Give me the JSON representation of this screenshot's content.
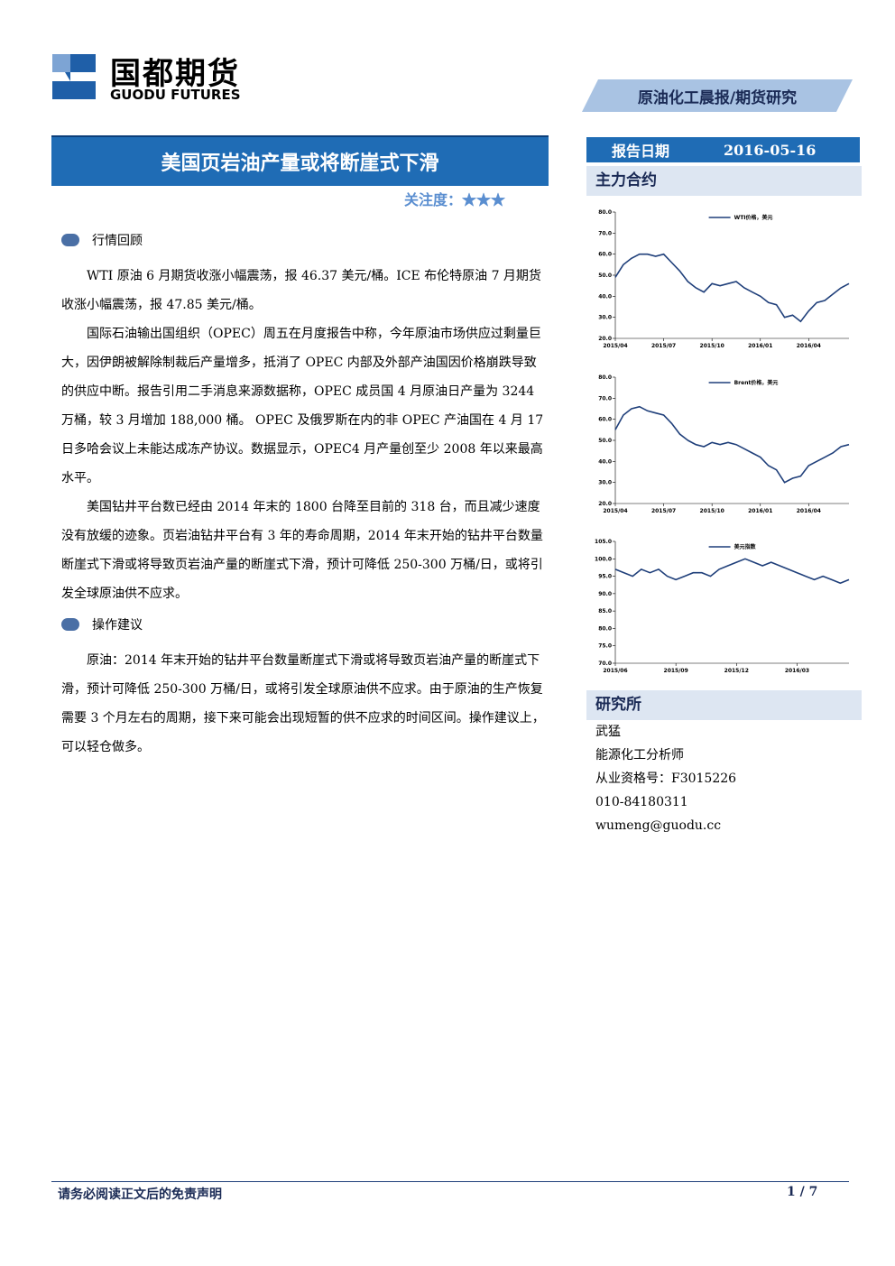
{
  "header": {
    "logo_cn": "国都期货",
    "logo_en": "GUODU FUTURES",
    "report_type": "原油化工晨报/期货研究",
    "title": "美国页岩油产量或将断崖式下滑",
    "attention_label": "关注度：",
    "stars": "★★★",
    "report_date_label": "报告日期",
    "report_date": "2016-05-16",
    "main_contract": "主力合约"
  },
  "sections": [
    {
      "heading": "行情回顾",
      "paragraphs": [
        "WTI 原油 6 月期货收涨小幅震荡，报 46.37 美元/桶。ICE 布伦特原油 7 月期货收涨小幅震荡，报 47.85 美元/桶。",
        "国际石油输出国组织（OPEC）周五在月度报告中称，今年原油市场供应过剩量巨大，因伊朗被解除制裁后产量增多，抵消了 OPEC 内部及外部产油国因价格崩跌导致的供应中断。报告引用二手消息来源数据称，OPEC 成员国 4 月原油日产量为 3244 万桶，较 3 月增加 188,000 桶。 OPEC 及俄罗斯在内的非 OPEC 产油国在 4 月 17 日多哈会议上未能达成冻产协议。数据显示，OPEC4 月产量创至少 2008 年以来最高水平。",
        "美国钻井平台数已经由 2014 年末的 1800 台降至目前的 318 台，而且减少速度没有放缓的迹象。页岩油钻井平台有 3 年的寿命周期，2014 年末开始的钻井平台数量断崖式下滑或将导致页岩油产量的断崖式下滑，预计可降低 250-300 万桶/日，或将引发全球原油供不应求。"
      ]
    },
    {
      "heading": "操作建议",
      "paragraphs": [
        "原油：2014 年末开始的钻井平台数量断崖式下滑或将导致页岩油产量的断崖式下滑，预计可降低 250-300 万桶/日，或将引发全球原油供不应求。由于原油的生产恢复需要 3 个月左右的周期，接下来可能会出现短暂的供不应求的时间区间。操作建议上，可以轻仓做多。"
      ]
    }
  ],
  "research": {
    "heading": "研究所",
    "lines": [
      "武猛",
      "能源化工分析师",
      "从业资格号：F3015226",
      "010-84180311",
      "wumeng@guodu.cc"
    ]
  },
  "footer": {
    "disclaimer": "请务必阅读正文后的免责声明",
    "page": "1 / 7"
  },
  "chart_data": [
    {
      "type": "line",
      "series": [
        {
          "name": "WTI价格，美元",
          "color": "#1f3f7a",
          "values": [
            49,
            55,
            58,
            60,
            60,
            59,
            60,
            56,
            52,
            47,
            44,
            42,
            46,
            45,
            46,
            47,
            44,
            42,
            40,
            37,
            36,
            30,
            31,
            28,
            33,
            37,
            38,
            41,
            44,
            46
          ]
        }
      ],
      "categories": [
        "2015/04",
        null,
        null,
        null,
        null,
        null,
        "2015/07",
        null,
        null,
        null,
        null,
        null,
        "2015/10",
        null,
        null,
        null,
        null,
        null,
        "2016/01",
        null,
        null,
        null,
        null,
        null,
        "2016/04",
        null,
        null,
        null,
        null,
        null
      ],
      "ylim": [
        20,
        80
      ],
      "yticks": [
        {
          "value": 20,
          "label": "20.0"
        },
        {
          "value": 30,
          "label": "30.0"
        },
        {
          "value": 40,
          "label": "40.0"
        },
        {
          "value": 50,
          "label": "50.0"
        },
        {
          "value": 60,
          "label": "60.0"
        },
        {
          "value": 70,
          "label": "70.0"
        },
        {
          "value": 80,
          "label": "80.0"
        }
      ]
    },
    {
      "type": "line",
      "series": [
        {
          "name": "Brent价格，美元",
          "color": "#1f3f7a",
          "values": [
            55,
            62,
            65,
            66,
            64,
            63,
            62,
            58,
            53,
            50,
            48,
            47,
            49,
            48,
            49,
            48,
            46,
            44,
            42,
            38,
            36,
            30,
            32,
            33,
            38,
            40,
            42,
            44,
            47,
            48
          ]
        }
      ],
      "categories": [
        "2015/04",
        null,
        null,
        null,
        null,
        null,
        "2015/07",
        null,
        null,
        null,
        null,
        null,
        "2015/10",
        null,
        null,
        null,
        null,
        null,
        "2016/01",
        null,
        null,
        null,
        null,
        null,
        "2016/04",
        null,
        null,
        null,
        null,
        null
      ],
      "ylim": [
        20,
        80
      ],
      "yticks": [
        {
          "value": 20,
          "label": "20.0"
        },
        {
          "value": 30,
          "label": "30.0"
        },
        {
          "value": 40,
          "label": "40.0"
        },
        {
          "value": 50,
          "label": "50.0"
        },
        {
          "value": 60,
          "label": "60.0"
        },
        {
          "value": 70,
          "label": "70.0"
        },
        {
          "value": 80,
          "label": "80.0"
        }
      ]
    },
    {
      "type": "line",
      "series": [
        {
          "name": "美元指数",
          "color": "#1f3f7a",
          "values": [
            97,
            96,
            95,
            97,
            96,
            97,
            95,
            94,
            95,
            96,
            96,
            95,
            97,
            98,
            99,
            100,
            99,
            98,
            99,
            98,
            97,
            96,
            95,
            94,
            95,
            94,
            93,
            94
          ]
        }
      ],
      "categories": [
        "2015/06",
        null,
        null,
        null,
        null,
        null,
        null,
        "2015/09",
        null,
        null,
        null,
        null,
        null,
        null,
        "2015/12",
        null,
        null,
        null,
        null,
        null,
        null,
        "2016/03",
        null,
        null,
        null,
        null,
        null,
        null
      ],
      "ylim": [
        70,
        105
      ],
      "yticks": [
        {
          "value": 70,
          "label": "70.0"
        },
        {
          "value": 75,
          "label": "75.0"
        },
        {
          "value": 80,
          "label": "80.0"
        },
        {
          "value": 85,
          "label": "85.0"
        },
        {
          "value": 90,
          "label": "90.0"
        },
        {
          "value": 95,
          "label": "95.0"
        },
        {
          "value": 100,
          "label": "100.0"
        },
        {
          "value": 105,
          "label": "105.0"
        }
      ]
    }
  ]
}
